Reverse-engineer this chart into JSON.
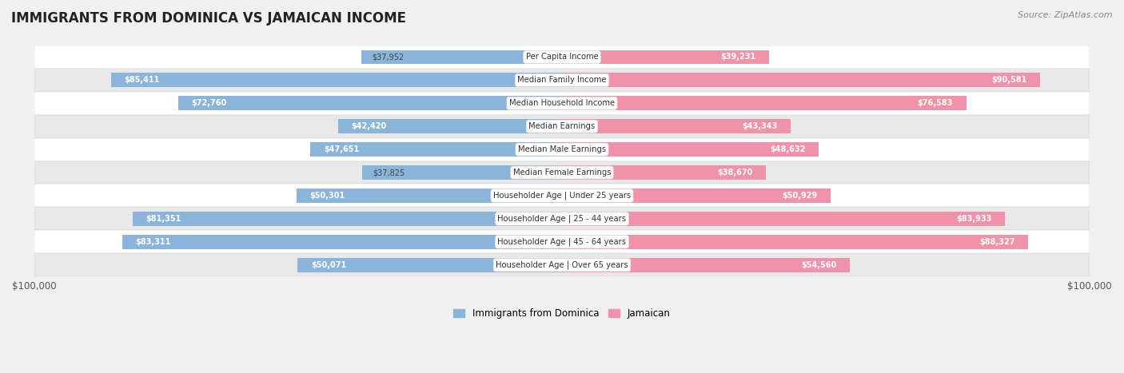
{
  "title": "IMMIGRANTS FROM DOMINICA VS JAMAICAN INCOME",
  "source": "Source: ZipAtlas.com",
  "categories": [
    "Per Capita Income",
    "Median Family Income",
    "Median Household Income",
    "Median Earnings",
    "Median Male Earnings",
    "Median Female Earnings",
    "Householder Age | Under 25 years",
    "Householder Age | 25 - 44 years",
    "Householder Age | 45 - 64 years",
    "Householder Age | Over 65 years"
  ],
  "dominica_values": [
    37952,
    85411,
    72760,
    42420,
    47651,
    37825,
    50301,
    81351,
    83311,
    50071
  ],
  "jamaican_values": [
    39231,
    90581,
    76583,
    43343,
    48632,
    38670,
    50929,
    83933,
    88327,
    54560
  ],
  "max_value": 100000,
  "dominica_color": "#8ab4d9",
  "jamaican_color": "#f092aa",
  "background_color": "#f0f0f0",
  "row_bg_odd": "#ffffff",
  "row_bg_even": "#e8e8e8",
  "bar_height": 0.62,
  "label_inside_threshold": 0.38,
  "legend_dominica_color": "#8ab4d9",
  "legend_jamaican_color": "#f092aa"
}
